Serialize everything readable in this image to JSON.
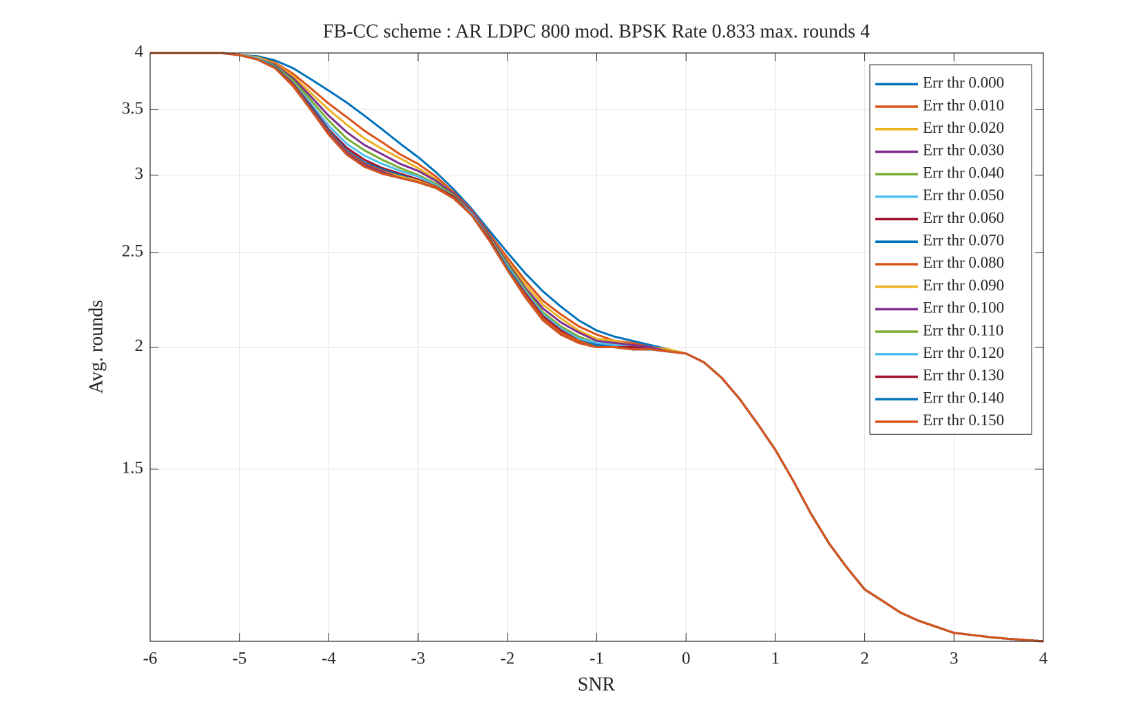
{
  "chart_data": {
    "type": "line",
    "title": "FB-CC scheme : AR LDPC 800 mod. BPSK Rate 0.833 max. rounds 4",
    "xlabel": "SNR",
    "ylabel": "Avg. rounds",
    "x": [
      -6,
      -5.8,
      -5.6,
      -5.4,
      -5.2,
      -5,
      -4.8,
      -4.6,
      -4.4,
      -4.2,
      -4,
      -3.8,
      -3.6,
      -3.4,
      -3.2,
      -3,
      -2.8,
      -2.6,
      -2.4,
      -2.2,
      -2,
      -1.8,
      -1.6,
      -1.4,
      -1.2,
      -1,
      -0.8,
      -0.6,
      -0.4,
      -0.2,
      0,
      0.2,
      0.4,
      0.6,
      0.8,
      1,
      1.2,
      1.4,
      1.6,
      1.8,
      2,
      2.2,
      2.4,
      2.6,
      2.8,
      3,
      3.2,
      3.4,
      3.6,
      3.8,
      4
    ],
    "series": [
      {
        "name": "Err thr 0.000",
        "color": "#0072BD",
        "values": [
          4,
          4,
          4,
          4,
          4,
          3.98,
          3.97,
          3.93,
          3.86,
          3.76,
          3.66,
          3.56,
          3.45,
          3.34,
          3.23,
          3.13,
          3.02,
          2.9,
          2.77,
          2.63,
          2.5,
          2.38,
          2.28,
          2.2,
          2.13,
          2.08,
          2.05,
          2.03,
          2.01,
          1.99,
          1.97,
          1.93,
          1.86,
          1.77,
          1.67,
          1.57,
          1.46,
          1.35,
          1.26,
          1.19,
          1.13,
          1.1,
          1.07,
          1.05,
          1.035,
          1.02,
          1.015,
          1.01,
          1.006,
          1.003,
          1
        ]
      },
      {
        "name": "Err thr 0.010",
        "color": "#D95319",
        "values": [
          4,
          4,
          4,
          4,
          4,
          3.98,
          3.96,
          3.91,
          3.81,
          3.68,
          3.55,
          3.44,
          3.33,
          3.24,
          3.15,
          3.08,
          2.99,
          2.88,
          2.76,
          2.61,
          2.47,
          2.34,
          2.23,
          2.16,
          2.1,
          2.06,
          2.03,
          2.02,
          2.0,
          1.99,
          1.97,
          1.93,
          1.86,
          1.77,
          1.67,
          1.57,
          1.46,
          1.35,
          1.26,
          1.19,
          1.13,
          1.1,
          1.07,
          1.05,
          1.035,
          1.02,
          1.015,
          1.01,
          1.006,
          1.003,
          1
        ]
      },
      {
        "name": "Err thr 0.020",
        "color": "#EDB120",
        "values": [
          4,
          4,
          4,
          4,
          4,
          3.98,
          3.96,
          3.9,
          3.79,
          3.64,
          3.5,
          3.38,
          3.27,
          3.19,
          3.12,
          3.05,
          2.97,
          2.87,
          2.75,
          2.6,
          2.45,
          2.32,
          2.21,
          2.14,
          2.08,
          2.04,
          2.03,
          2.01,
          2.0,
          1.99,
          1.97,
          1.93,
          1.86,
          1.77,
          1.67,
          1.57,
          1.46,
          1.35,
          1.26,
          1.19,
          1.13,
          1.1,
          1.07,
          1.05,
          1.035,
          1.02,
          1.015,
          1.01,
          1.006,
          1.003,
          1
        ]
      },
      {
        "name": "Err thr 0.030",
        "color": "#7E2F8E",
        "values": [
          4,
          4,
          4,
          4,
          4,
          3.98,
          3.95,
          3.89,
          3.77,
          3.61,
          3.45,
          3.32,
          3.22,
          3.15,
          3.08,
          3.03,
          2.96,
          2.87,
          2.75,
          2.6,
          2.44,
          2.3,
          2.19,
          2.12,
          2.07,
          2.03,
          2.02,
          2.01,
          2.0,
          1.98,
          1.97,
          1.93,
          1.86,
          1.77,
          1.67,
          1.57,
          1.46,
          1.35,
          1.26,
          1.19,
          1.13,
          1.1,
          1.07,
          1.05,
          1.035,
          1.02,
          1.015,
          1.01,
          1.006,
          1.003,
          1
        ]
      },
      {
        "name": "Err thr 0.040",
        "color": "#77AC30",
        "values": [
          4,
          4,
          4,
          4,
          4,
          3.98,
          3.95,
          3.88,
          3.75,
          3.58,
          3.41,
          3.27,
          3.18,
          3.11,
          3.05,
          3.0,
          2.94,
          2.86,
          2.74,
          2.59,
          2.43,
          2.29,
          2.17,
          2.1,
          2.05,
          2.02,
          2.01,
          2.0,
          1.99,
          1.98,
          1.97,
          1.93,
          1.86,
          1.77,
          1.67,
          1.57,
          1.46,
          1.35,
          1.26,
          1.19,
          1.13,
          1.1,
          1.07,
          1.05,
          1.035,
          1.02,
          1.015,
          1.01,
          1.006,
          1.003,
          1
        ]
      },
      {
        "name": "Err thr 0.050",
        "color": "#4DBEEE",
        "values": [
          4,
          4,
          4,
          4,
          4,
          3.98,
          3.95,
          3.87,
          3.73,
          3.55,
          3.37,
          3.23,
          3.14,
          3.08,
          3.03,
          2.99,
          2.93,
          2.85,
          2.74,
          2.58,
          2.42,
          2.28,
          2.16,
          2.09,
          2.04,
          2.02,
          2.01,
          2.0,
          1.99,
          1.98,
          1.97,
          1.93,
          1.86,
          1.77,
          1.67,
          1.57,
          1.46,
          1.35,
          1.26,
          1.19,
          1.13,
          1.1,
          1.07,
          1.05,
          1.035,
          1.02,
          1.015,
          1.01,
          1.006,
          1.003,
          1
        ]
      },
      {
        "name": "Err thr 0.060",
        "color": "#A2142F",
        "values": [
          4,
          4,
          4,
          4,
          4,
          3.98,
          3.94,
          3.87,
          3.72,
          3.53,
          3.34,
          3.2,
          3.11,
          3.05,
          3.01,
          2.97,
          2.92,
          2.85,
          2.73,
          2.58,
          2.41,
          2.27,
          2.15,
          2.08,
          2.03,
          2.01,
          2.0,
          2.0,
          1.99,
          1.98,
          1.97,
          1.93,
          1.86,
          1.77,
          1.67,
          1.57,
          1.46,
          1.35,
          1.26,
          1.19,
          1.13,
          1.1,
          1.07,
          1.05,
          1.035,
          1.02,
          1.015,
          1.01,
          1.006,
          1.003,
          1
        ]
      },
      {
        "name": "Err thr 0.070",
        "color": "#0072BD",
        "values": [
          4,
          4,
          4,
          4,
          4,
          3.98,
          3.94,
          3.87,
          3.71,
          3.52,
          3.33,
          3.18,
          3.09,
          3.04,
          3.0,
          2.96,
          2.92,
          2.84,
          2.73,
          2.57,
          2.41,
          2.26,
          2.14,
          2.07,
          2.03,
          2.01,
          2.0,
          1.99,
          1.99,
          1.98,
          1.97,
          1.93,
          1.86,
          1.77,
          1.67,
          1.57,
          1.46,
          1.35,
          1.26,
          1.19,
          1.13,
          1.1,
          1.07,
          1.05,
          1.035,
          1.02,
          1.015,
          1.01,
          1.006,
          1.003,
          1
        ]
      },
      {
        "name": "Err thr 0.080",
        "color": "#D95319",
        "values": [
          4,
          4,
          4,
          4,
          4,
          3.98,
          3.94,
          3.86,
          3.71,
          3.51,
          3.32,
          3.17,
          3.08,
          3.03,
          2.99,
          2.96,
          2.92,
          2.84,
          2.73,
          2.57,
          2.4,
          2.26,
          2.14,
          2.07,
          2.03,
          2.0,
          2.0,
          1.99,
          1.99,
          1.98,
          1.97,
          1.93,
          1.86,
          1.77,
          1.67,
          1.57,
          1.46,
          1.35,
          1.26,
          1.19,
          1.13,
          1.1,
          1.07,
          1.05,
          1.035,
          1.02,
          1.015,
          1.01,
          1.006,
          1.003,
          1
        ]
      },
      {
        "name": "Err thr 0.090",
        "color": "#EDB120",
        "values": [
          4,
          4,
          4,
          4,
          4,
          3.98,
          3.94,
          3.86,
          3.7,
          3.51,
          3.31,
          3.16,
          3.07,
          3.02,
          2.99,
          2.96,
          2.91,
          2.84,
          2.73,
          2.57,
          2.4,
          2.25,
          2.13,
          2.06,
          2.02,
          2.0,
          2.0,
          1.99,
          1.99,
          1.98,
          1.97,
          1.93,
          1.86,
          1.77,
          1.67,
          1.57,
          1.46,
          1.35,
          1.26,
          1.19,
          1.13,
          1.1,
          1.07,
          1.05,
          1.035,
          1.02,
          1.015,
          1.01,
          1.006,
          1.003,
          1
        ]
      },
      {
        "name": "Err thr 0.100",
        "color": "#7E2F8E",
        "values": [
          4,
          4,
          4,
          4,
          4,
          3.98,
          3.94,
          3.86,
          3.7,
          3.51,
          3.31,
          3.16,
          3.07,
          3.02,
          2.98,
          2.95,
          2.91,
          2.84,
          2.73,
          2.57,
          2.4,
          2.25,
          2.13,
          2.06,
          2.02,
          2.0,
          2.0,
          1.99,
          1.99,
          1.98,
          1.97,
          1.93,
          1.86,
          1.77,
          1.67,
          1.57,
          1.46,
          1.35,
          1.26,
          1.19,
          1.13,
          1.1,
          1.07,
          1.05,
          1.035,
          1.02,
          1.015,
          1.01,
          1.006,
          1.003,
          1
        ]
      },
      {
        "name": "Err thr 0.110",
        "color": "#77AC30",
        "values": [
          4,
          4,
          4,
          4,
          4,
          3.98,
          3.94,
          3.86,
          3.7,
          3.5,
          3.3,
          3.15,
          3.06,
          3.01,
          2.98,
          2.95,
          2.91,
          2.84,
          2.73,
          2.57,
          2.4,
          2.25,
          2.13,
          2.06,
          2.02,
          2.0,
          2.0,
          1.99,
          1.99,
          1.98,
          1.97,
          1.93,
          1.86,
          1.77,
          1.67,
          1.57,
          1.46,
          1.35,
          1.26,
          1.19,
          1.13,
          1.1,
          1.07,
          1.05,
          1.035,
          1.02,
          1.015,
          1.01,
          1.006,
          1.003,
          1
        ]
      },
      {
        "name": "Err thr 0.120",
        "color": "#4DBEEE",
        "values": [
          4,
          4,
          4,
          4,
          4,
          3.98,
          3.94,
          3.86,
          3.7,
          3.5,
          3.3,
          3.15,
          3.06,
          3.01,
          2.98,
          2.95,
          2.91,
          2.84,
          2.73,
          2.57,
          2.4,
          2.25,
          2.13,
          2.06,
          2.02,
          2.0,
          2.0,
          1.99,
          1.99,
          1.98,
          1.97,
          1.93,
          1.86,
          1.77,
          1.67,
          1.57,
          1.46,
          1.35,
          1.26,
          1.19,
          1.13,
          1.1,
          1.07,
          1.05,
          1.035,
          1.02,
          1.015,
          1.01,
          1.006,
          1.003,
          1
        ]
      },
      {
        "name": "Err thr 0.130",
        "color": "#A2142F",
        "values": [
          4,
          4,
          4,
          4,
          4,
          3.98,
          3.94,
          3.86,
          3.7,
          3.5,
          3.3,
          3.15,
          3.06,
          3.01,
          2.98,
          2.95,
          2.91,
          2.84,
          2.73,
          2.57,
          2.4,
          2.25,
          2.13,
          2.06,
          2.02,
          2.0,
          2.0,
          1.99,
          1.99,
          1.98,
          1.97,
          1.93,
          1.86,
          1.77,
          1.67,
          1.57,
          1.46,
          1.35,
          1.26,
          1.19,
          1.13,
          1.1,
          1.07,
          1.05,
          1.035,
          1.02,
          1.015,
          1.01,
          1.006,
          1.003,
          1
        ]
      },
      {
        "name": "Err thr 0.140",
        "color": "#0072BD",
        "values": [
          4,
          4,
          4,
          4,
          4,
          3.98,
          3.94,
          3.86,
          3.7,
          3.5,
          3.3,
          3.15,
          3.06,
          3.01,
          2.98,
          2.95,
          2.91,
          2.84,
          2.73,
          2.57,
          2.4,
          2.25,
          2.13,
          2.06,
          2.02,
          2.0,
          2.0,
          1.99,
          1.99,
          1.98,
          1.97,
          1.93,
          1.86,
          1.77,
          1.67,
          1.57,
          1.46,
          1.35,
          1.26,
          1.19,
          1.13,
          1.1,
          1.07,
          1.05,
          1.035,
          1.02,
          1.015,
          1.01,
          1.006,
          1.003,
          1
        ]
      },
      {
        "name": "Err thr 0.150",
        "color": "#D95319",
        "values": [
          4,
          4,
          4,
          4,
          4,
          3.98,
          3.94,
          3.86,
          3.7,
          3.5,
          3.3,
          3.15,
          3.06,
          3.01,
          2.98,
          2.95,
          2.91,
          2.84,
          2.73,
          2.57,
          2.4,
          2.25,
          2.13,
          2.06,
          2.02,
          2.0,
          2.0,
          1.99,
          1.99,
          1.98,
          1.97,
          1.93,
          1.86,
          1.77,
          1.67,
          1.57,
          1.46,
          1.35,
          1.26,
          1.19,
          1.13,
          1.1,
          1.07,
          1.05,
          1.035,
          1.02,
          1.015,
          1.01,
          1.006,
          1.003,
          1
        ]
      }
    ],
    "xlim": [
      -6,
      4
    ],
    "xticks": [
      -6,
      -5,
      -4,
      -3,
      -2,
      -1,
      0,
      1,
      2,
      3,
      4
    ],
    "ylim": [
      1,
      4
    ],
    "yticks": [
      1.5,
      2,
      2.5,
      3,
      3.5,
      4
    ],
    "yscale": "log",
    "grid": true,
    "legend": "northeast"
  }
}
